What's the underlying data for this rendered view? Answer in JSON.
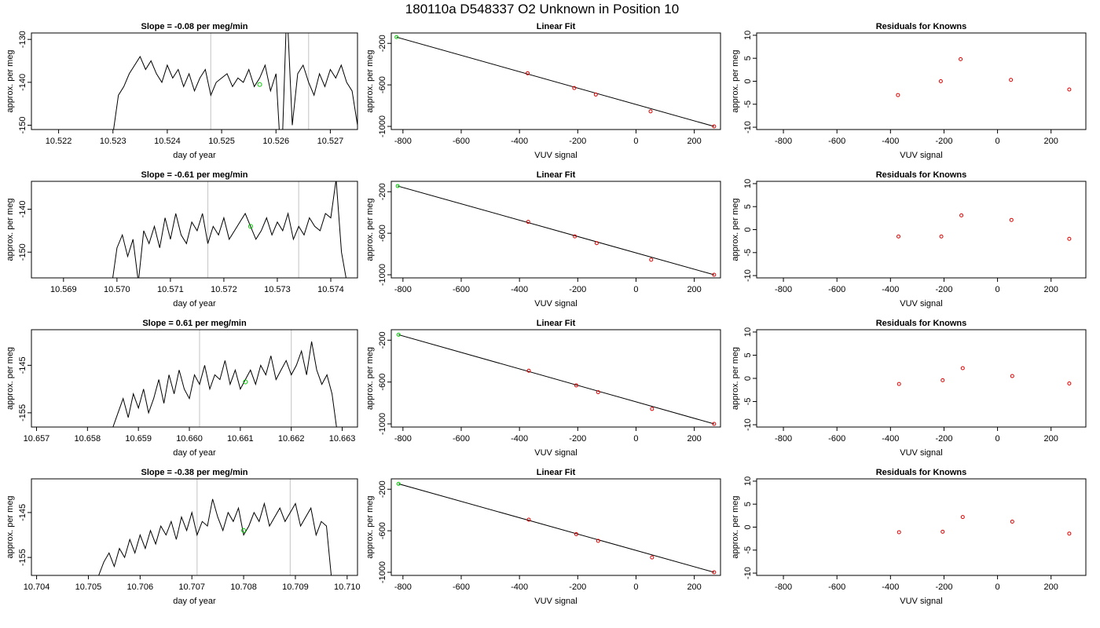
{
  "figure": {
    "title": "180110a      D548337    O2 Unknown in Position  10"
  },
  "chart_data": [
    {
      "id": "r1-timeseries",
      "type": "line",
      "title": "Slope =  -0.08  per meg/min",
      "xlabel": "day of year",
      "ylabel": "approx. per meg",
      "xlim": [
        10.5215,
        10.5275
      ],
      "ylim": [
        -151,
        -128.5
      ],
      "xticks": [
        10.522,
        10.523,
        10.524,
        10.525,
        10.526,
        10.527
      ],
      "xticklabels": [
        "10.522",
        "10.523",
        "10.524",
        "10.525",
        "10.526",
        "10.527"
      ],
      "yticks": [
        -150,
        -140,
        -130
      ],
      "yticklabels": [
        "-150",
        "-140",
        "-130"
      ],
      "series": [
        {
          "x": [
            10.523,
            10.5231,
            10.5232,
            10.5233,
            10.5234,
            10.5235,
            10.5236,
            10.5237,
            10.5238,
            10.5239,
            10.524,
            10.5241,
            10.5242,
            10.5243,
            10.5244,
            10.5245,
            10.5246,
            10.5247,
            10.5248,
            10.5249,
            10.525,
            10.5251,
            10.5252,
            10.5253,
            10.5254,
            10.5255,
            10.5256,
            10.5257,
            10.5258,
            10.5259,
            10.526,
            10.5261,
            10.5262,
            10.5263,
            10.5264,
            10.5265,
            10.5266,
            10.5267,
            10.5268,
            10.5269,
            10.527,
            10.5271,
            10.5272,
            10.5273,
            10.5274,
            10.5275
          ],
          "values": [
            -152,
            -143,
            -141,
            -138,
            -136,
            -134,
            -137,
            -135,
            -138,
            -140,
            -136,
            -139,
            -137,
            -141,
            -138,
            -142,
            -139,
            -137,
            -143,
            -140,
            -139,
            -138,
            -141,
            -139,
            -140,
            -137,
            -141,
            -139,
            -136,
            -142,
            -138,
            -160,
            -122,
            -150,
            -138,
            -136,
            -140,
            -143,
            -138,
            -141,
            -137,
            -139,
            -136,
            -140,
            -142,
            -150
          ]
        }
      ],
      "marker_points": [
        {
          "x": 10.5257,
          "y": -140.5
        }
      ],
      "vlines": [
        10.5248,
        10.5266
      ]
    },
    {
      "id": "r1-fit",
      "type": "scatter",
      "title": "Linear Fit",
      "xlabel": "VUV signal",
      "ylabel": "approx. per meg",
      "xlim": [
        -840,
        290
      ],
      "ylim": [
        -1030,
        -100
      ],
      "xticks": [
        -800,
        -600,
        -400,
        -200,
        0,
        200
      ],
      "xticklabels": [
        "-800",
        "-600",
        "-400",
        "-200",
        "0",
        "200"
      ],
      "yticks": [
        -200,
        -600,
        -1000
      ],
      "yticklabels": [
        "-200",
        "-600",
        "-1000"
      ],
      "fit_line": {
        "x": [
          -822,
          268
        ],
        "y": [
          -140,
          -1000
        ]
      },
      "known_points": {
        "x": [
          -372,
          -212,
          -138,
          50,
          268
        ],
        "y": [
          -488,
          -630,
          -693,
          -855,
          -1000
        ]
      },
      "unknown_point": {
        "x": -822,
        "y": -140
      }
    },
    {
      "id": "r1-residuals",
      "type": "scatter",
      "title": "Residuals for Knowns",
      "xlabel": "VUV signal",
      "ylabel": "approx. per meg",
      "xlim": [
        -900,
        330
      ],
      "ylim": [
        -10.5,
        10.5
      ],
      "xticks": [
        -800,
        -600,
        -400,
        -200,
        0,
        200
      ],
      "xticklabels": [
        "-800",
        "-600",
        "-400",
        "-200",
        "0",
        "200"
      ],
      "yticks": [
        -10,
        -5,
        0,
        5,
        10
      ],
      "yticklabels": [
        "-10",
        "-5",
        "0",
        "5",
        "10"
      ],
      "points": {
        "x": [
          -372,
          -212,
          -138,
          50,
          268
        ],
        "y": [
          -3,
          0,
          4.8,
          0.3,
          -1.8
        ]
      }
    },
    {
      "id": "r2-timeseries",
      "type": "line",
      "title": "Slope =  -0.61  per meg/min",
      "xlabel": "day of year",
      "ylabel": "approx. per meg",
      "xlim": [
        10.5684,
        10.5745
      ],
      "ylim": [
        -156,
        -133.5
      ],
      "xticks": [
        10.569,
        10.57,
        10.571,
        10.572,
        10.573,
        10.574
      ],
      "xticklabels": [
        "10.569",
        "10.570",
        "10.571",
        "10.572",
        "10.573",
        "10.574"
      ],
      "yticks": [
        -150,
        -140
      ],
      "yticklabels": [
        "-150",
        "-140"
      ],
      "series": [
        {
          "x": [
            10.5699,
            10.57,
            10.5701,
            10.5702,
            10.5703,
            10.5704,
            10.5705,
            10.5706,
            10.5707,
            10.5708,
            10.5709,
            10.571,
            10.5711,
            10.5712,
            10.5713,
            10.5714,
            10.5715,
            10.5716,
            10.5717,
            10.5718,
            10.5719,
            10.572,
            10.5721,
            10.5722,
            10.5723,
            10.5724,
            10.5725,
            10.5726,
            10.5727,
            10.5728,
            10.5729,
            10.573,
            10.5731,
            10.5732,
            10.5733,
            10.5734,
            10.5735,
            10.5736,
            10.5737,
            10.5738,
            10.5739,
            10.574,
            10.5741,
            10.5742,
            10.5743
          ],
          "values": [
            -158,
            -149,
            -146,
            -151,
            -147,
            -157,
            -145,
            -148,
            -144,
            -149,
            -142,
            -147,
            -141,
            -146,
            -148,
            -143,
            -145,
            -141,
            -148,
            -144,
            -146,
            -142,
            -147,
            -145,
            -143,
            -141,
            -144,
            -147,
            -145,
            -142,
            -146,
            -143,
            -145,
            -141,
            -147,
            -144,
            -146,
            -142,
            -144,
            -145,
            -141,
            -142,
            -133,
            -150,
            -157
          ]
        }
      ],
      "marker_points": [
        {
          "x": 10.5725,
          "y": -144
        }
      ],
      "vlines": [
        10.5717,
        10.5734
      ]
    },
    {
      "id": "r2-fit",
      "type": "scatter",
      "title": "Linear Fit",
      "xlabel": "VUV signal",
      "ylabel": "approx. per meg",
      "xlim": [
        -840,
        290
      ],
      "ylim": [
        -1030,
        -100
      ],
      "xticks": [
        -800,
        -600,
        -400,
        -200,
        0,
        200
      ],
      "xticklabels": [
        "-800",
        "-600",
        "-400",
        "-200",
        "0",
        "200"
      ],
      "yticks": [
        -200,
        -600,
        -1000
      ],
      "yticklabels": [
        "-200",
        "-600",
        "-1000"
      ],
      "fit_line": {
        "x": [
          -818,
          268
        ],
        "y": [
          -145,
          -1000
        ]
      },
      "known_points": {
        "x": [
          -370,
          -210,
          -135,
          52,
          268
        ],
        "y": [
          -490,
          -630,
          -695,
          -855,
          -1000
        ]
      },
      "unknown_point": {
        "x": -818,
        "y": -145
      }
    },
    {
      "id": "r2-residuals",
      "type": "scatter",
      "title": "Residuals for Knowns",
      "xlabel": "VUV signal",
      "ylabel": "approx. per meg",
      "xlim": [
        -900,
        330
      ],
      "ylim": [
        -10.5,
        10.5
      ],
      "xticks": [
        -800,
        -600,
        -400,
        -200,
        0,
        200
      ],
      "xticklabels": [
        "-800",
        "-600",
        "-400",
        "-200",
        "0",
        "200"
      ],
      "yticks": [
        -10,
        -5,
        0,
        5,
        10
      ],
      "yticklabels": [
        "-10",
        "-5",
        "0",
        "5",
        "10"
      ],
      "points": {
        "x": [
          -370,
          -210,
          -135,
          52,
          268
        ],
        "y": [
          -1.5,
          -1.5,
          3.1,
          2.1,
          -2
        ]
      }
    },
    {
      "id": "r3-timeseries",
      "type": "line",
      "title": "Slope =  0.61  per meg/min",
      "xlabel": "day of year",
      "ylabel": "approx. per meg",
      "xlim": [
        10.6569,
        10.6633
      ],
      "ylim": [
        -158,
        -137.5
      ],
      "xticks": [
        10.657,
        10.658,
        10.659,
        10.66,
        10.661,
        10.662,
        10.663
      ],
      "xticklabels": [
        "10.657",
        "10.658",
        "10.659",
        "10.660",
        "10.661",
        "10.662",
        "10.663"
      ],
      "yticks": [
        -155,
        -145
      ],
      "yticklabels": [
        "-155",
        "-145"
      ],
      "series": [
        {
          "x": [
            10.6585,
            10.6586,
            10.6587,
            10.6588,
            10.6589,
            10.659,
            10.6591,
            10.6592,
            10.6593,
            10.6594,
            10.6595,
            10.6596,
            10.6597,
            10.6598,
            10.6599,
            10.66,
            10.6601,
            10.6602,
            10.6603,
            10.6604,
            10.6605,
            10.6606,
            10.6607,
            10.6608,
            10.6609,
            10.661,
            10.6611,
            10.6612,
            10.6613,
            10.6614,
            10.6615,
            10.6616,
            10.6617,
            10.6618,
            10.6619,
            10.662,
            10.6621,
            10.6622,
            10.6623,
            10.6624,
            10.6625,
            10.6626,
            10.6627,
            10.6628,
            10.6629
          ],
          "values": [
            -158,
            -155,
            -152,
            -156,
            -151,
            -154,
            -150,
            -155,
            -152,
            -148,
            -153,
            -147,
            -151,
            -146,
            -150,
            -152,
            -147,
            -149,
            -145,
            -150,
            -147,
            -148,
            -144,
            -149,
            -146,
            -150,
            -148,
            -146,
            -149,
            -145,
            -147,
            -143,
            -148,
            -146,
            -144,
            -147,
            -145,
            -142,
            -147,
            -140,
            -146,
            -149,
            -147,
            -151,
            -159
          ]
        }
      ],
      "marker_points": [
        {
          "x": 10.6611,
          "y": -148.5
        }
      ],
      "vlines": [
        10.6602,
        10.662
      ]
    },
    {
      "id": "r3-fit",
      "type": "scatter",
      "title": "Linear Fit",
      "xlabel": "VUV signal",
      "ylabel": "approx. per meg",
      "xlim": [
        -840,
        290
      ],
      "ylim": [
        -1030,
        -100
      ],
      "xticks": [
        -800,
        -600,
        -400,
        -200,
        0,
        200
      ],
      "xticklabels": [
        "-800",
        "-600",
        "-400",
        "-200",
        "0",
        "200"
      ],
      "yticks": [
        -200,
        -600,
        -1000
      ],
      "yticklabels": [
        "-200",
        "-600",
        "-1000"
      ],
      "fit_line": {
        "x": [
          -815,
          268
        ],
        "y": [
          -148,
          -1000
        ]
      },
      "known_points": {
        "x": [
          -368,
          -205,
          -130,
          55,
          268
        ],
        "y": [
          -492,
          -632,
          -697,
          -857,
          -1000
        ]
      },
      "unknown_point": {
        "x": -815,
        "y": -148
      }
    },
    {
      "id": "r3-residuals",
      "type": "scatter",
      "title": "Residuals for Knowns",
      "xlabel": "VUV signal",
      "ylabel": "approx. per meg",
      "xlim": [
        -900,
        330
      ],
      "ylim": [
        -10.5,
        10.5
      ],
      "xticks": [
        -800,
        -600,
        -400,
        -200,
        0,
        200
      ],
      "xticklabels": [
        "-800",
        "-600",
        "-400",
        "-200",
        "0",
        "200"
      ],
      "yticks": [
        -10,
        -5,
        0,
        5,
        10
      ],
      "yticklabels": [
        "-10",
        "-5",
        "0",
        "5",
        "10"
      ],
      "points": {
        "x": [
          -368,
          -205,
          -130,
          55,
          268
        ],
        "y": [
          -1.2,
          -0.4,
          2.2,
          0.5,
          -1.1
        ]
      }
    },
    {
      "id": "r4-timeseries",
      "type": "line",
      "title": "Slope =  -0.38  per meg/min",
      "xlabel": "day of year",
      "ylabel": "approx. per meg",
      "xlim": [
        10.7039,
        10.7102
      ],
      "ylim": [
        -159,
        -137.5
      ],
      "xticks": [
        10.704,
        10.705,
        10.706,
        10.707,
        10.708,
        10.709,
        10.71
      ],
      "xticklabels": [
        "10.704",
        "10.705",
        "10.706",
        "10.707",
        "10.708",
        "10.709",
        "10.710"
      ],
      "yticks": [
        -155,
        -145
      ],
      "yticklabels": [
        "-155",
        "-145"
      ],
      "series": [
        {
          "x": [
            10.7052,
            10.7053,
            10.7054,
            10.7055,
            10.7056,
            10.7057,
            10.7058,
            10.7059,
            10.706,
            10.7061,
            10.7062,
            10.7063,
            10.7064,
            10.7065,
            10.7066,
            10.7067,
            10.7068,
            10.7069,
            10.707,
            10.7071,
            10.7072,
            10.7073,
            10.7074,
            10.7075,
            10.7076,
            10.7077,
            10.7078,
            10.7079,
            10.708,
            10.7081,
            10.7082,
            10.7083,
            10.7084,
            10.7085,
            10.7086,
            10.7087,
            10.7088,
            10.7089,
            10.709,
            10.7091,
            10.7092,
            10.7093,
            10.7094,
            10.7095,
            10.7096,
            10.7097
          ],
          "values": [
            -159,
            -156,
            -154,
            -157,
            -153,
            -155,
            -151,
            -154,
            -150,
            -153,
            -149,
            -152,
            -148,
            -150,
            -147,
            -151,
            -146,
            -149,
            -145,
            -150,
            -147,
            -148,
            -142,
            -146,
            -149,
            -145,
            -147,
            -144,
            -150,
            -148,
            -145,
            -147,
            -143,
            -148,
            -146,
            -144,
            -147,
            -145,
            -143,
            -148,
            -146,
            -144,
            -150,
            -147,
            -148,
            -160
          ]
        }
      ],
      "marker_points": [
        {
          "x": 10.708,
          "y": -149
        }
      ],
      "vlines": [
        10.7071,
        10.7089
      ]
    },
    {
      "id": "r4-fit",
      "type": "scatter",
      "title": "Linear Fit",
      "xlabel": "VUV signal",
      "ylabel": "approx. per meg",
      "xlim": [
        -840,
        290
      ],
      "ylim": [
        -1030,
        -100
      ],
      "xticks": [
        -800,
        -600,
        -400,
        -200,
        0,
        200
      ],
      "xticklabels": [
        "-800",
        "-600",
        "-400",
        "-200",
        "0",
        "200"
      ],
      "yticks": [
        -200,
        -600,
        -1000
      ],
      "yticklabels": [
        "-200",
        "-600",
        "-1000"
      ],
      "fit_line": {
        "x": [
          -815,
          268
        ],
        "y": [
          -148,
          -1000
        ]
      },
      "known_points": {
        "x": [
          -368,
          -205,
          -130,
          55,
          268
        ],
        "y": [
          -493,
          -633,
          -697,
          -857,
          -1000
        ]
      },
      "unknown_point": {
        "x": -815,
        "y": -148
      }
    },
    {
      "id": "r4-residuals",
      "type": "scatter",
      "title": "Residuals for Knowns",
      "xlabel": "VUV signal",
      "ylabel": "approx. per meg",
      "xlim": [
        -900,
        330
      ],
      "ylim": [
        -10.5,
        10.5
      ],
      "xticks": [
        -800,
        -600,
        -400,
        -200,
        0,
        200
      ],
      "xticklabels": [
        "-800",
        "-600",
        "-400",
        "-200",
        "0",
        "200"
      ],
      "yticks": [
        -10,
        -5,
        0,
        5,
        10
      ],
      "yticklabels": [
        "-10",
        "-5",
        "0",
        "5",
        "10"
      ],
      "points": {
        "x": [
          -368,
          -205,
          -130,
          55,
          268
        ],
        "y": [
          -1.1,
          -1.0,
          2.2,
          1.2,
          -1.4
        ]
      }
    }
  ]
}
